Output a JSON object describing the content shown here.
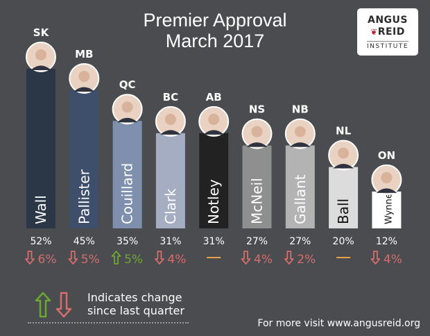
{
  "chart_data": {
    "type": "bar",
    "title": "Premier Approval",
    "subtitle": "March 2017",
    "categories": [
      "Wall",
      "Pallister",
      "Couillard",
      "Clark",
      "Notley",
      "McNeil",
      "Gallant",
      "Ball",
      "Wynne"
    ],
    "provinces": [
      "SK",
      "MB",
      "QC",
      "BC",
      "AB",
      "NS",
      "NB",
      "NL",
      "ON"
    ],
    "values": [
      52,
      45,
      35,
      31,
      31,
      27,
      27,
      20,
      12
    ],
    "value_labels": [
      "52%",
      "45%",
      "35%",
      "31%",
      "31%",
      "27%",
      "27%",
      "20%",
      "12%"
    ],
    "changes": [
      "6%",
      "5%",
      "5%",
      "4%",
      "",
      "4%",
      "2%",
      "",
      "4%"
    ],
    "change_direction": [
      "down",
      "down",
      "up",
      "down",
      "none",
      "down",
      "down",
      "none",
      "down"
    ],
    "bar_colors": [
      "#2b3647",
      "#3d4f6a",
      "#7e90ad",
      "#a4adc1",
      "#222222",
      "#8f8f8f",
      "#b3b3b3",
      "#dcdcdc",
      "#ffffff"
    ],
    "label_colors": [
      "#ffffff",
      "#ffffff",
      "#ffffff",
      "#ffffff",
      "#ffffff",
      "#ffffff",
      "#ffffff",
      "#111111",
      "#111111"
    ],
    "ylim": [
      0,
      52
    ],
    "grid": false,
    "legend_position": "bottom-left"
  },
  "colors": {
    "up": "#6aa832",
    "down": "#d56d6d",
    "no_change": "#e8a14a",
    "background": "#4a4c4f"
  },
  "logo": {
    "line1": "ANGUS",
    "line2": "REID",
    "line3": "INSTITUTE"
  },
  "legend": {
    "line1": "Indicates change",
    "line2": "since last quarter"
  },
  "footer": {
    "text": "For more visit www.angusreid.org"
  }
}
